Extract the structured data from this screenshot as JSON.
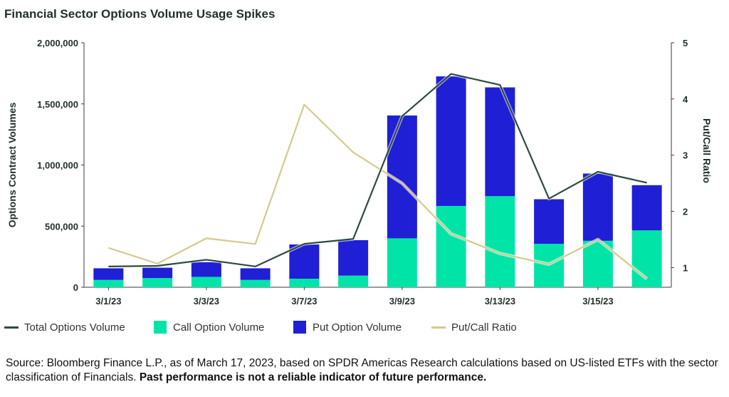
{
  "title": "Financial Sector Options Volume Usage Spikes",
  "chart_data": {
    "type": "bar",
    "stacked": true,
    "x_tick_labels": [
      "3/1/23",
      "3/3/23",
      "3/7/23",
      "3/9/23",
      "3/13/23",
      "3/15/23"
    ],
    "x_tick_label_positions": [
      0,
      2,
      4,
      6,
      8,
      10
    ],
    "series": [
      {
        "name": "Call Option Volume",
        "kind": "bar",
        "axis": "left",
        "color": "#00e5a7",
        "values": [
          60000,
          75000,
          85000,
          60000,
          70000,
          95000,
          400000,
          665000,
          745000,
          355000,
          380000,
          465000
        ]
      },
      {
        "name": "Put Option Volume",
        "kind": "bar",
        "axis": "left",
        "color": "#1f1fd6",
        "values": [
          95000,
          85000,
          120000,
          95000,
          280000,
          290000,
          1005000,
          1060000,
          890000,
          365000,
          550000,
          370000
        ]
      },
      {
        "name": "Total Options Volume",
        "kind": "line",
        "axis": "left",
        "color": "#2f4a40",
        "values": [
          170000,
          175000,
          225000,
          170000,
          355000,
          395000,
          1400000,
          1745000,
          1655000,
          725000,
          945000,
          855000
        ]
      },
      {
        "name": "Put/Call Ratio",
        "kind": "line",
        "axis": "right",
        "color": "#d4c98e",
        "values": [
          1.35,
          1.07,
          1.52,
          1.42,
          3.9,
          3.05,
          2.5,
          1.6,
          1.25,
          1.06,
          1.5,
          0.8
        ]
      }
    ],
    "ylabel": "Options Contract Volumes",
    "y2label": "Put/Call Ratio",
    "ylim": [
      0,
      2000000
    ],
    "yticks": [
      "0",
      "500,000",
      "1,000,000",
      "1,500,000",
      "2,000,000"
    ],
    "y2lim": [
      0.65,
      5
    ],
    "y2ticks": [
      1,
      2,
      3,
      4,
      5
    ],
    "legend_position": "bottom"
  },
  "legend": [
    {
      "label": "Total Options Volume",
      "type": "line",
      "color": "#2f4a40"
    },
    {
      "label": "Call Option Volume",
      "type": "box",
      "color": "#00e5a7"
    },
    {
      "label": "Put Option Volume",
      "type": "box",
      "color": "#1f1fd6"
    },
    {
      "label": "Put/Call Ratio",
      "type": "line",
      "color": "#d4c98e"
    }
  ],
  "source": {
    "text": "Source: Bloomberg Finance L.P., as of March 17, 2023, based on SPDR Americas Research calculations based on US-listed ETFs with the sector classification of Financials. ",
    "bold": "Past performance is not a reliable indicator of future performance."
  }
}
